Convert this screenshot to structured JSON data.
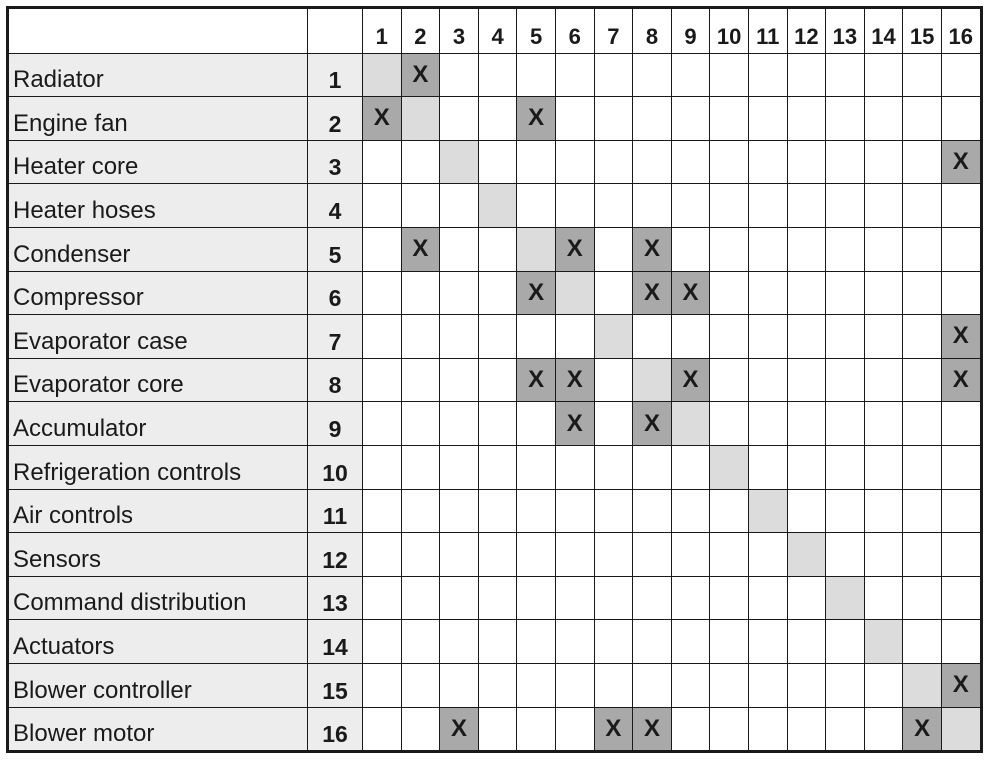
{
  "colors": {
    "label_bg": "#ededed",
    "diagonal": "#dcdcdc",
    "marked_cell": "#a9a9a9",
    "grid": "#1a1a1a"
  },
  "column_headers": [
    "1",
    "2",
    "3",
    "4",
    "5",
    "6",
    "7",
    "8",
    "9",
    "10",
    "11",
    "12",
    "13",
    "14",
    "15",
    "16"
  ],
  "mark_symbol": "X",
  "rows": [
    {
      "label": "Radiator",
      "num": "1",
      "marks": [
        2
      ]
    },
    {
      "label": "Engine fan",
      "num": "2",
      "marks": [
        1,
        5
      ]
    },
    {
      "label": "Heater core",
      "num": "3",
      "marks": [
        16
      ]
    },
    {
      "label": "Heater hoses",
      "num": "4",
      "marks": []
    },
    {
      "label": "Condenser",
      "num": "5",
      "marks": [
        2,
        6,
        8
      ]
    },
    {
      "label": "Compressor",
      "num": "6",
      "marks": [
        5,
        8,
        9
      ]
    },
    {
      "label": "Evaporator case",
      "num": "7",
      "marks": [
        16
      ]
    },
    {
      "label": "Evaporator core",
      "num": "8",
      "marks": [
        5,
        6,
        9,
        16
      ]
    },
    {
      "label": "Accumulator",
      "num": "9",
      "marks": [
        6,
        8
      ]
    },
    {
      "label": "Refrigeration controls",
      "num": "10",
      "marks": []
    },
    {
      "label": "Air controls",
      "num": "11",
      "marks": []
    },
    {
      "label": "Sensors",
      "num": "12",
      "marks": []
    },
    {
      "label": "Command distribution",
      "num": "13",
      "marks": []
    },
    {
      "label": "Actuators",
      "num": "14",
      "marks": []
    },
    {
      "label": "Blower controller",
      "num": "15",
      "marks": [
        16
      ]
    },
    {
      "label": "Blower motor",
      "num": "16",
      "marks": [
        3,
        7,
        8,
        15
      ]
    }
  ]
}
